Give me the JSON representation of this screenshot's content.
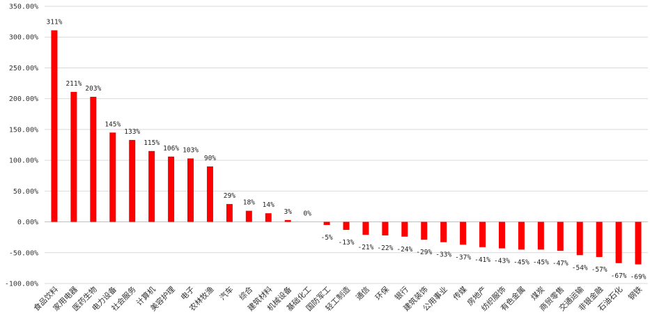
{
  "chart_data": {
    "type": "bar",
    "title": "",
    "xlabel": "",
    "ylabel": "",
    "ylim": [
      -100,
      350
    ],
    "yticks": [
      350,
      300,
      250,
      200,
      150,
      100,
      50,
      0,
      -50,
      -100
    ],
    "ytick_format": "percent_2dp",
    "grid": "horizontal",
    "bar_color": "#ff0000",
    "categories": [
      "食品饮料",
      "家用电器",
      "医药生物",
      "电力设备",
      "社会服务",
      "计算机",
      "美容护理",
      "电子",
      "农林牧渔",
      "汽车",
      "综合",
      "建筑材料",
      "机械设备",
      "基础化工",
      "国防军工",
      "轻工制造",
      "通信",
      "环保",
      "银行",
      "建筑装饰",
      "公用事业",
      "传媒",
      "房地产",
      "纺织服饰",
      "有色金属",
      "煤炭",
      "商贸零售",
      "交通运输",
      "非银金融",
      "石油石化",
      "钢铁"
    ],
    "values": [
      311,
      211,
      203,
      145,
      133,
      115,
      106,
      103,
      90,
      29,
      18,
      14,
      3,
      0,
      -5,
      -13,
      -21,
      -22,
      -24,
      -29,
      -33,
      -37,
      -41,
      -43,
      -45,
      -45,
      -47,
      -54,
      -57,
      -67,
      -69
    ],
    "data_labels": [
      "311%",
      "211%",
      "203%",
      "145%",
      "133%",
      "115%",
      "106%",
      "103%",
      "90%",
      "29%",
      "18%",
      "14%",
      "3%",
      "0%",
      "-5%",
      "-13%",
      "-21%",
      "-22%",
      "-24%",
      "-29%",
      "-33%",
      "-37%",
      "-41%",
      "-43%",
      "-45%",
      "-45%",
      "-47%",
      "-54%",
      "-57%",
      "-67%",
      "-69%"
    ],
    "ytick_labels": [
      "350.00%",
      "300.00%",
      "250.00%",
      "200.00%",
      "150.00%",
      "100.00%",
      "50.00%",
      "0.00%",
      "-50.00%",
      "-100.00%"
    ]
  }
}
